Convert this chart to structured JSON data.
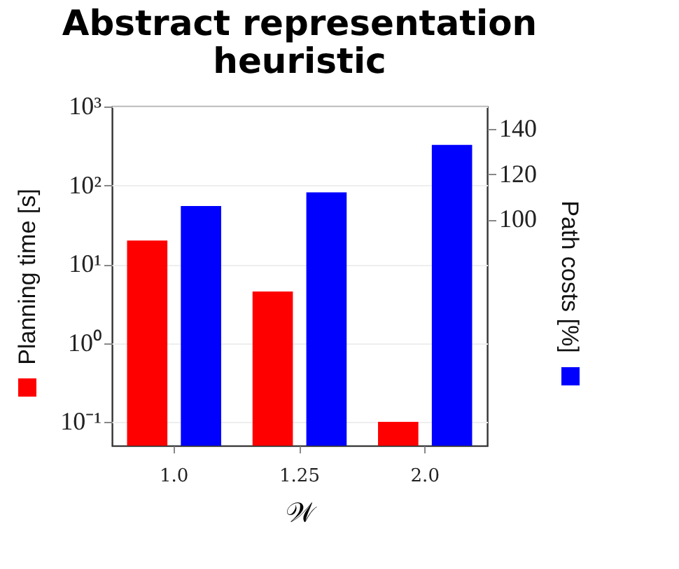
{
  "chart_data": {
    "type": "bar",
    "title": "Abstract representation heuristic",
    "xlabel": "𝒲",
    "ylabel": "Planning time [s]",
    "y2label": "Path costs [%]",
    "categories": [
      "1.0",
      "1.25",
      "2.0"
    ],
    "series": [
      {
        "color": "#ff0000",
        "values": [
          20,
          4.5,
          0.1
        ]
      },
      {
        "color": "#0000ff",
        "axis": "y2",
        "values": [
          106,
          112,
          133
        ]
      }
    ],
    "log": "y",
    "ylim": [
      0.05,
      1000
    ],
    "yticks": [
      {
        "value": 0.1,
        "label": "10⁻¹"
      },
      {
        "value": 1,
        "label": "10⁰"
      },
      {
        "value": 10,
        "label": "10¹"
      },
      {
        "value": 100,
        "label": "10²"
      },
      {
        "value": 1000,
        "label": "10³"
      }
    ],
    "y2lim": [
      0,
      150
    ],
    "y2ticks": [
      100,
      120,
      140
    ],
    "grid": "y"
  }
}
